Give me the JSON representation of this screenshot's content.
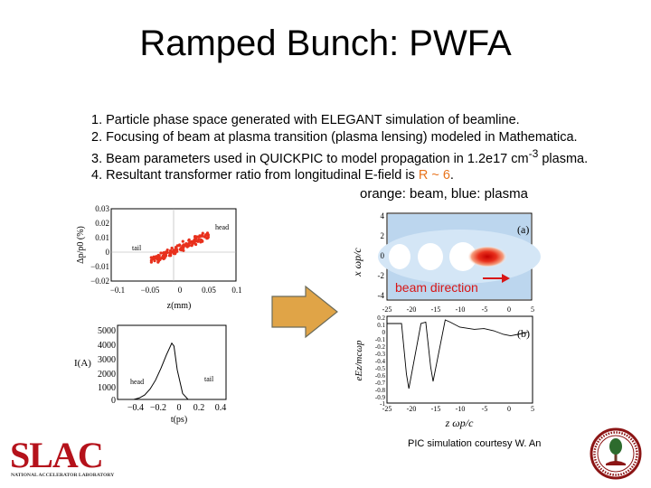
{
  "slide": {
    "title": "Ramped Bunch: PWFA",
    "bullets": [
      "1. Particle phase space generated with ELEGANT simulation of beamline.",
      "2. Focusing of beam at plasma transition (plasma lensing) modeled in Mathematica.",
      "3. Beam parameters used in QUICKPIC to model propagation in 1.2e17 cm",
      "4. Resultant transformer ratio from longitudinal E-field is "
    ],
    "bullet3_sup": "-3",
    "bullet3_tail": " plasma.",
    "bullet4_highlight": "R ~ 6",
    "bullet4_tail": ".",
    "legend_note": "orange: beam, blue: plasma",
    "beam_direction": "beam direction",
    "credit": "PIC simulation courtesy W. An",
    "logo_text": "SLAC",
    "logo_subtext": "NATIONAL ACCELERATOR LABORATORY",
    "colors": {
      "highlight": "#e8731c",
      "beam": "#e8301c",
      "arrow_fill": "#e0a447",
      "logo_red": "#b5121b",
      "seal_red": "#8c1515"
    }
  },
  "chart_data": [
    {
      "type": "scatter",
      "ylabel": "Δp/p0 (%)",
      "xlabel": "z(mm)",
      "xticks": [
        "−0.1",
        "−0.05",
        "0",
        "0.05",
        "0.1"
      ],
      "yticks": [
        "0.03",
        "0.02",
        "0.01",
        "0",
        "−0.01",
        "−0.02"
      ],
      "xlim": [
        -0.1,
        0.1
      ],
      "ylim": [
        -0.02,
        0.03
      ],
      "annotations": [
        "head",
        "tail"
      ],
      "points": [
        [
          -0.03,
          -0.005
        ],
        [
          -0.02,
          -0.003
        ],
        [
          -0.01,
          -0.001
        ],
        [
          0.0,
          0.001
        ],
        [
          0.01,
          0.003
        ],
        [
          0.02,
          0.005
        ],
        [
          0.03,
          0.007
        ],
        [
          0.04,
          0.009
        ],
        [
          0.05,
          0.011
        ]
      ]
    },
    {
      "type": "line",
      "ylabel": "I(A)",
      "xlabel": "t(ps)",
      "xticks": [
        "−0.4",
        "−0.2",
        "0",
        "0.2",
        "0.4"
      ],
      "yticks": [
        "5000",
        "4000",
        "3000",
        "2000",
        "1000",
        "0"
      ],
      "xlim": [
        -0.5,
        0.5
      ],
      "ylim": [
        0,
        5000
      ],
      "annotations": [
        "head",
        "tail"
      ],
      "x": [
        -0.35,
        -0.3,
        -0.25,
        -0.2,
        -0.15,
        -0.1,
        -0.05,
        0.0,
        0.02,
        0.05,
        0.1,
        0.15
      ],
      "values": [
        0,
        100,
        300,
        700,
        1300,
        2100,
        3000,
        3800,
        3600,
        2000,
        400,
        0
      ]
    },
    {
      "type": "heatmap",
      "panel": "(a)",
      "ylabel": "x ωp/c",
      "yticks": [
        "4",
        "2",
        "0",
        "-2",
        "-4"
      ],
      "ylim": [
        -4,
        4
      ]
    },
    {
      "type": "line",
      "panel": "(b)",
      "ylabel": "eEz/mcωp",
      "xlabel": "z ωp/c",
      "xticks": [
        "-25",
        "-20",
        "-15",
        "-10",
        "-5",
        "0",
        "5"
      ],
      "yticks": [
        "0.2",
        "0.1",
        "0",
        "-0.1",
        "-0.2",
        "-0.3",
        "-0.4",
        "-0.5",
        "-0.6",
        "-0.7",
        "-0.8",
        "-0.9",
        "-1"
      ],
      "xlim": [
        -25,
        5
      ],
      "ylim": [
        -1,
        0.2
      ],
      "x": [
        -25,
        -22,
        -21,
        -20.5,
        -18,
        -17,
        -16,
        -15.5,
        -13,
        -12,
        -10,
        -7,
        -5,
        -3,
        -1,
        0.5,
        2,
        4
      ],
      "values": [
        0.1,
        0.1,
        -0.6,
        -0.8,
        0.1,
        0.12,
        -0.5,
        -0.7,
        0.15,
        0.12,
        0.05,
        0.02,
        0.03,
        0.0,
        -0.05,
        -0.07,
        -0.05,
        -0.02
      ]
    }
  ]
}
